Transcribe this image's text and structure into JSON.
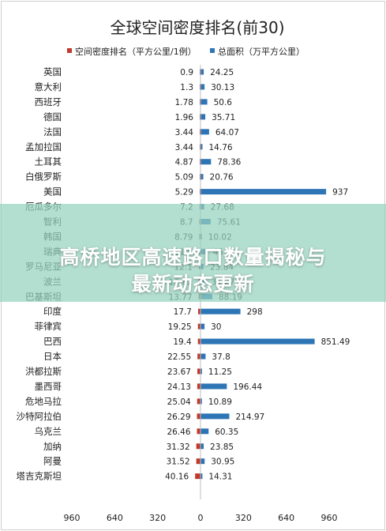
{
  "chart_data": {
    "type": "bar",
    "orientation": "horizontal",
    "title": "全球空间密度排名(前30)",
    "categories": [
      "英国",
      "意大利",
      "西班牙",
      "德国",
      "法国",
      "孟加拉国",
      "土耳其",
      "白俄罗斯",
      "美国",
      "厄瓜多尔",
      "智利",
      "韩国",
      "瑞典",
      "罗马尼亚",
      "波兰",
      "巴基斯坦",
      "印度",
      "菲律宾",
      "巴西",
      "日本",
      "洪都拉斯",
      "墨西哥",
      "危地马拉",
      "沙特阿拉伯",
      "乌克兰",
      "加纳",
      "阿曼",
      "塔吉克斯坦"
    ],
    "series": [
      {
        "name": "空间密度排名（平方公里/1例）",
        "color": "#c0392b",
        "values": [
          0.9,
          1.3,
          1.78,
          1.96,
          3.44,
          3.44,
          4.87,
          5.09,
          5.29,
          7.2,
          8.7,
          8.79,
          11.5,
          12.1,
          13.62,
          13.77,
          17.7,
          19.25,
          19.4,
          22.55,
          23.67,
          24.13,
          25.04,
          26.29,
          26.46,
          31.32,
          31.52,
          40.16
        ],
        "labels": [
          "0.9",
          "1.3",
          "1.78",
          "1.96",
          "3.44",
          "3.44",
          "4.87",
          "5.09",
          "5.29",
          "7.2",
          "8.7",
          "8.79",
          "11.5",
          "12.1",
          "13.62",
          "13.77",
          "17.7",
          "19.25",
          "19.4",
          "22.55",
          "23.67",
          "24.13",
          "25.04",
          "26.29",
          "26.46",
          "31.32",
          "31.52",
          "40.16"
        ]
      },
      {
        "name": "总面积（万平方公里）",
        "color": "#2e75b6",
        "values": [
          24.25,
          30.13,
          50.6,
          35.71,
          64.07,
          14.76,
          78.36,
          20.76,
          937,
          27.68,
          75.61,
          10.02,
          45,
          23.84,
          31.27,
          88.19,
          298,
          30,
          851.49,
          37.8,
          11.25,
          196.44,
          10.89,
          214.97,
          60.35,
          23.85,
          30.95,
          14.31
        ],
        "labels": [
          "24.25",
          "30.13",
          "50.6",
          "35.71",
          "64.07",
          "14.76",
          "78.36",
          "20.76",
          "937",
          "27.68",
          "75.61",
          "10.02",
          "45",
          "23.84",
          "31.27",
          "88.19",
          "298",
          "30",
          "851.49",
          "37.8",
          "11.25",
          "196.44",
          "10.89",
          "214.97",
          "60.35",
          "23.85",
          "30.95",
          "14.31"
        ]
      }
    ],
    "xticks": [
      "960",
      "640",
      "320",
      "0",
      "320",
      "640",
      "960"
    ],
    "xlim": [
      -960,
      960
    ],
    "grid": false,
    "legend_position": "top"
  },
  "overlay": {
    "line1": "高桥地区高速路口数量揭秘与",
    "line2": "最新动态更新"
  }
}
